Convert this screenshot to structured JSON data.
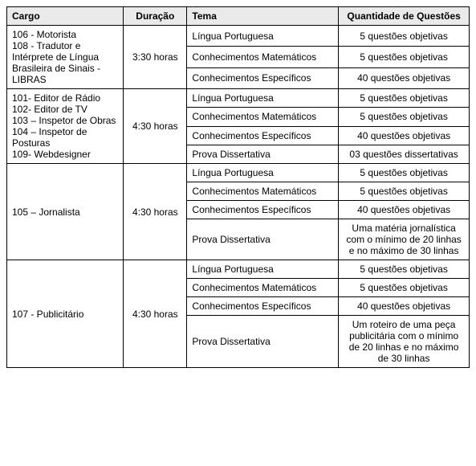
{
  "headers": {
    "cargo": "Cargo",
    "duracao": "Duração",
    "tema": "Tema",
    "quant": "Quantidade de Questões"
  },
  "groups": [
    {
      "cargo": "106 - Motorista\n108 - Tradutor e Intérprete de Língua Brasileira de Sinais - LIBRAS",
      "duracao": "3:30 horas",
      "rows": [
        {
          "tema": "Língua Portuguesa",
          "quant": "5 questões objetivas"
        },
        {
          "tema": "Conhecimentos Matemáticos",
          "quant": "5 questões objetivas"
        },
        {
          "tema": "Conhecimentos Específicos",
          "quant": "40 questões objetivas"
        }
      ]
    },
    {
      "cargo": "101- Editor de Rádio\n102- Editor de TV\n103 – Inspetor de Obras\n104 – Inspetor de Posturas\n109- Webdesigner",
      "duracao": "4:30 horas",
      "rows": [
        {
          "tema": "Língua Portuguesa",
          "quant": "5 questões objetivas"
        },
        {
          "tema": "Conhecimentos Matemáticos",
          "quant": "5 questões objetivas"
        },
        {
          "tema": "Conhecimentos Específicos",
          "quant": "40 questões objetivas"
        },
        {
          "tema": "Prova Dissertativa",
          "quant": "03 questões dissertativas"
        }
      ]
    },
    {
      "cargo": "105 – Jornalista",
      "duracao": "4:30 horas",
      "rows": [
        {
          "tema": "Língua Portuguesa",
          "quant": "5 questões objetivas"
        },
        {
          "tema": "Conhecimentos Matemáticos",
          "quant": "5 questões objetivas"
        },
        {
          "tema": "Conhecimentos Específicos",
          "quant": "40 questões objetivas"
        },
        {
          "tema": "Prova Dissertativa",
          "quant": "Uma matéria jornalística com o mínimo de 20 linhas e no máximo de 30 linhas"
        }
      ]
    },
    {
      "cargo": "107 - Publicitário",
      "duracao": "4:30 horas",
      "rows": [
        {
          "tema": "Língua Portuguesa",
          "quant": "5 questões objetivas"
        },
        {
          "tema": "Conhecimentos Matemáticos",
          "quant": "5 questões objetivas"
        },
        {
          "tema": "Conhecimentos Específicos",
          "quant": "40 questões objetivas"
        },
        {
          "tema": "Prova Dissertativa",
          "quant": "Um roteiro de uma peça publicitária com o mínimo de 20 linhas e no máximo de 30 linhas"
        }
      ]
    }
  ]
}
